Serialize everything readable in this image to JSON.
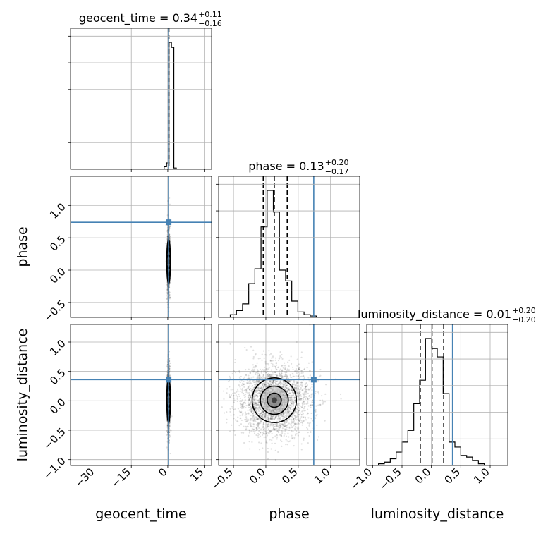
{
  "chart_data": {
    "type": "corner",
    "parameters": [
      "geocent_time",
      "phase",
      "luminosity_distance"
    ],
    "truths": {
      "geocent_time": 0.34,
      "phase": 0.74,
      "luminosity_distance": 0.36
    },
    "titles": [
      {
        "param": "geocent_time",
        "label": "geocent_time = 0.34",
        "plus": "+0.11",
        "minus": "−0.16"
      },
      {
        "param": "phase",
        "label": "phase = 0.13",
        "plus": "+0.20",
        "minus": "−0.17"
      },
      {
        "param": "luminosity_distance",
        "label": "luminosity_distance = 0.01",
        "plus": "+0.20",
        "minus": "−0.20"
      }
    ],
    "axes": {
      "geocent_time": {
        "range": [
          -40,
          18
        ],
        "ticks": [
          -30,
          -15,
          0,
          15
        ],
        "tick_labels": [
          "−30",
          "−15",
          "0",
          "15"
        ]
      },
      "phase": {
        "range": [
          -0.73,
          1.45
        ],
        "ticks": [
          -0.5,
          0.0,
          0.5,
          1.0
        ],
        "tick_labels": [
          "−0.5",
          "0.0",
          "0.5",
          "1.0"
        ]
      },
      "luminosity_distance": {
        "range": [
          -1.1,
          1.3
        ],
        "ticks": [
          -1.0,
          -0.5,
          0.0,
          0.5,
          1.0
        ],
        "tick_labels": [
          "−1.0",
          "−0.5",
          "0.0",
          "0.5",
          "1.0"
        ]
      }
    },
    "histograms": {
      "geocent_time": {
        "edges": [
          -1.5,
          -0.5,
          0.5,
          1.5,
          2.5,
          3.5,
          4.5
        ],
        "heights": [
          0.02,
          0.05,
          1.0,
          0.96,
          0.01,
          0.0
        ],
        "quantiles": [
          0.18,
          0.34,
          0.45
        ]
      },
      "phase": {
        "edges": [
          -0.73,
          -0.55,
          -0.455,
          -0.36,
          -0.265,
          -0.17,
          -0.075,
          0.02,
          0.115,
          0.21,
          0.305,
          0.4,
          0.495,
          0.59,
          0.685,
          0.78,
          0.875,
          0.97
        ],
        "heights": [
          0.0,
          0.02,
          0.05,
          0.1,
          0.25,
          0.36,
          0.67,
          0.94,
          0.78,
          0.35,
          0.27,
          0.12,
          0.04,
          0.02,
          0.01,
          0.0,
          0.0
        ],
        "quantiles": [
          -0.04,
          0.13,
          0.33
        ]
      },
      "luminosity_distance": {
        "edges": [
          -1.0,
          -0.9,
          -0.8,
          -0.7,
          -0.6,
          -0.5,
          -0.4,
          -0.3,
          -0.2,
          -0.1,
          0.0,
          0.1,
          0.2,
          0.3,
          0.4,
          0.5,
          0.6,
          0.7,
          0.8,
          0.9,
          1.0
        ],
        "heights": [
          0.0,
          0.01,
          0.02,
          0.04,
          0.08,
          0.14,
          0.21,
          0.37,
          0.51,
          0.76,
          0.7,
          0.65,
          0.43,
          0.14,
          0.11,
          0.06,
          0.05,
          0.03,
          0.01,
          0.0
        ],
        "quantiles": [
          -0.19,
          0.01,
          0.21
        ]
      }
    },
    "contours_2d": [
      {
        "x": "geocent_time",
        "y": "phase",
        "center": [
          0.34,
          0.13
        ],
        "sigma": [
          0.35,
          0.18
        ]
      },
      {
        "x": "geocent_time",
        "y": "luminosity_distance",
        "center": [
          0.34,
          0.01
        ],
        "sigma": [
          0.35,
          0.2
        ]
      },
      {
        "x": "phase",
        "y": "luminosity_distance",
        "center": [
          0.13,
          0.01
        ],
        "sigma": [
          0.18,
          0.2
        ]
      }
    ],
    "xlabels": [
      "geocent_time",
      "phase",
      "luminosity_distance"
    ],
    "ylabels": [
      "",
      "phase",
      "luminosity_distance"
    ],
    "grid": true
  }
}
